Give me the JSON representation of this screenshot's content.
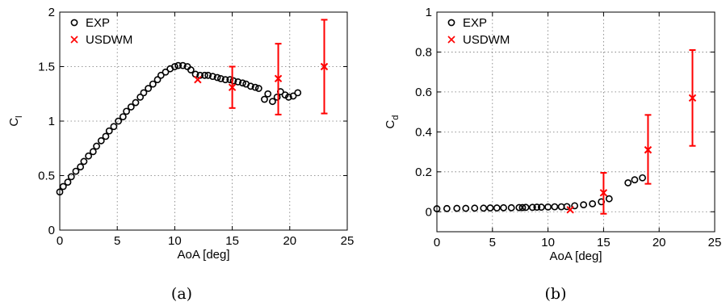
{
  "chart_data": [
    {
      "type": "scatter",
      "caption": "(a)",
      "xlabel": "AoA [deg]",
      "ylabel": "C",
      "ylabel_sub": "l",
      "xlim": [
        0,
        25
      ],
      "ylim": [
        0,
        2
      ],
      "xticks": [
        "0",
        "5",
        "10",
        "15",
        "20",
        "25"
      ],
      "yticks": [
        "0",
        "0.5",
        "1",
        "1.5",
        "2"
      ],
      "grid": true,
      "legend_position": "top-left",
      "series": [
        {
          "name": "EXP",
          "marker": "circle",
          "color": "#000000",
          "x": [
            0,
            0.3,
            0.7,
            1.0,
            1.4,
            1.8,
            2.1,
            2.5,
            2.9,
            3.2,
            3.6,
            4.0,
            4.3,
            4.7,
            5.1,
            5.5,
            5.8,
            6.2,
            6.6,
            7.0,
            7.3,
            7.7,
            8.1,
            8.5,
            8.8,
            9.2,
            9.6,
            10.0,
            10.3,
            10.7,
            11.1,
            11.4,
            11.8,
            12.2,
            12.6,
            12.9,
            13.3,
            13.7,
            14.0,
            14.4,
            14.8,
            15.1,
            15.5,
            15.9,
            16.2,
            16.6,
            17.0,
            17.3,
            17.8,
            18.1,
            18.5,
            18.9,
            19.2,
            19.6,
            19.9,
            20.3,
            20.7
          ],
          "y": [
            0.35,
            0.4,
            0.44,
            0.49,
            0.54,
            0.58,
            0.63,
            0.68,
            0.72,
            0.77,
            0.82,
            0.86,
            0.91,
            0.95,
            1.0,
            1.04,
            1.09,
            1.13,
            1.17,
            1.22,
            1.26,
            1.3,
            1.34,
            1.38,
            1.42,
            1.45,
            1.48,
            1.5,
            1.51,
            1.51,
            1.5,
            1.47,
            1.43,
            1.42,
            1.42,
            1.42,
            1.41,
            1.4,
            1.39,
            1.38,
            1.38,
            1.37,
            1.36,
            1.35,
            1.34,
            1.32,
            1.31,
            1.3,
            1.2,
            1.25,
            1.18,
            1.22,
            1.27,
            1.24,
            1.22,
            1.23,
            1.26
          ]
        },
        {
          "name": "USDWM",
          "marker": "x",
          "color": "#ff0000",
          "x": [
            12,
            15,
            19,
            23
          ],
          "y": [
            1.38,
            1.31,
            1.39,
            1.5
          ],
          "err_low": [
            1.38,
            1.12,
            1.06,
            1.07
          ],
          "err_high": [
            1.38,
            1.5,
            1.71,
            1.93
          ]
        }
      ]
    },
    {
      "type": "scatter",
      "caption": "(b)",
      "xlabel": "AoA [deg]",
      "ylabel": "C",
      "ylabel_sub": "d",
      "xlim": [
        0,
        25
      ],
      "ylim": [
        -0.1,
        1
      ],
      "xticks": [
        "0",
        "5",
        "10",
        "15",
        "20",
        "25"
      ],
      "yticks": [
        "0",
        "0.2",
        "0.4",
        "0.6",
        "0.8",
        "1"
      ],
      "ytick_values": [
        0,
        0.2,
        0.4,
        0.6,
        0.8,
        1
      ],
      "grid": true,
      "legend_position": "top-left",
      "series": [
        {
          "name": "EXP",
          "marker": "circle",
          "color": "#000000",
          "x": [
            0,
            0.9,
            1.8,
            2.6,
            3.4,
            4.2,
            4.8,
            5.4,
            6.0,
            6.7,
            7.4,
            7.7,
            8.0,
            8.6,
            9.0,
            9.4,
            10.0,
            10.6,
            11.2,
            11.7,
            12.4,
            13.2,
            14.0,
            14.8,
            15.5,
            17.2,
            17.8,
            18.5
          ],
          "y": [
            0.015,
            0.016,
            0.017,
            0.017,
            0.018,
            0.018,
            0.019,
            0.019,
            0.02,
            0.02,
            0.021,
            0.021,
            0.022,
            0.022,
            0.023,
            0.023,
            0.024,
            0.025,
            0.025,
            0.026,
            0.03,
            0.035,
            0.04,
            0.05,
            0.065,
            0.145,
            0.16,
            0.17
          ]
        },
        {
          "name": "USDWM",
          "marker": "x",
          "color": "#ff0000",
          "x": [
            12,
            15,
            19,
            23
          ],
          "y": [
            0.01,
            0.095,
            0.31,
            0.57
          ],
          "err_low": [
            0.01,
            -0.01,
            0.14,
            0.33
          ],
          "err_high": [
            0.01,
            0.195,
            0.485,
            0.81
          ]
        }
      ]
    }
  ]
}
